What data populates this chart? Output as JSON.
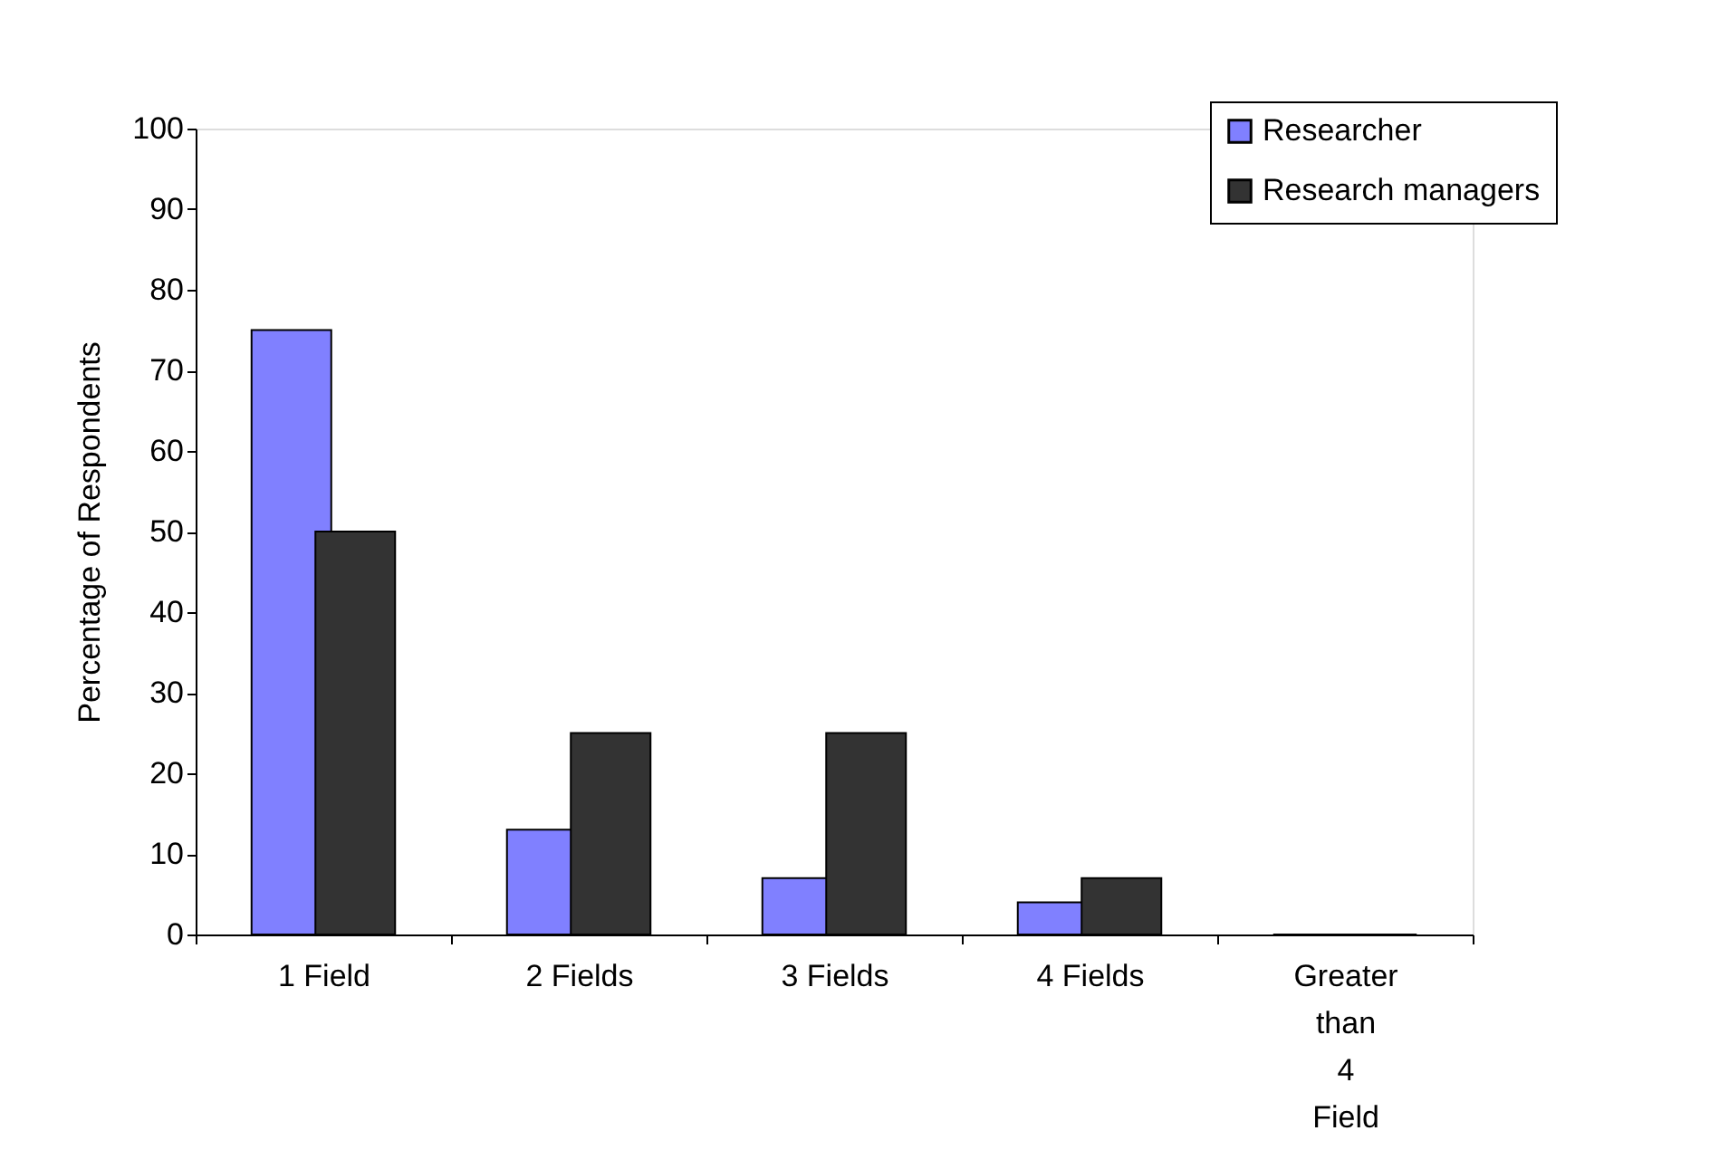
{
  "chart_data": {
    "type": "bar",
    "ylabel": "Percentage of Respondents",
    "categories": [
      "1 Field",
      "2 Fields",
      "3 Fields",
      "4 Fields",
      "Greater than 4 Field"
    ],
    "series": [
      {
        "name": "Researcher",
        "color": "#8080ff",
        "values": [
          75,
          13,
          7,
          4,
          0
        ]
      },
      {
        "name": "Research managers",
        "color": "#333333",
        "values": [
          50,
          25,
          25,
          7,
          0
        ]
      }
    ],
    "ylim": [
      0,
      100
    ],
    "yticks": [
      0,
      10,
      20,
      30,
      40,
      50,
      60,
      70,
      80,
      90,
      100
    ],
    "grid": false,
    "legend": "top right"
  }
}
